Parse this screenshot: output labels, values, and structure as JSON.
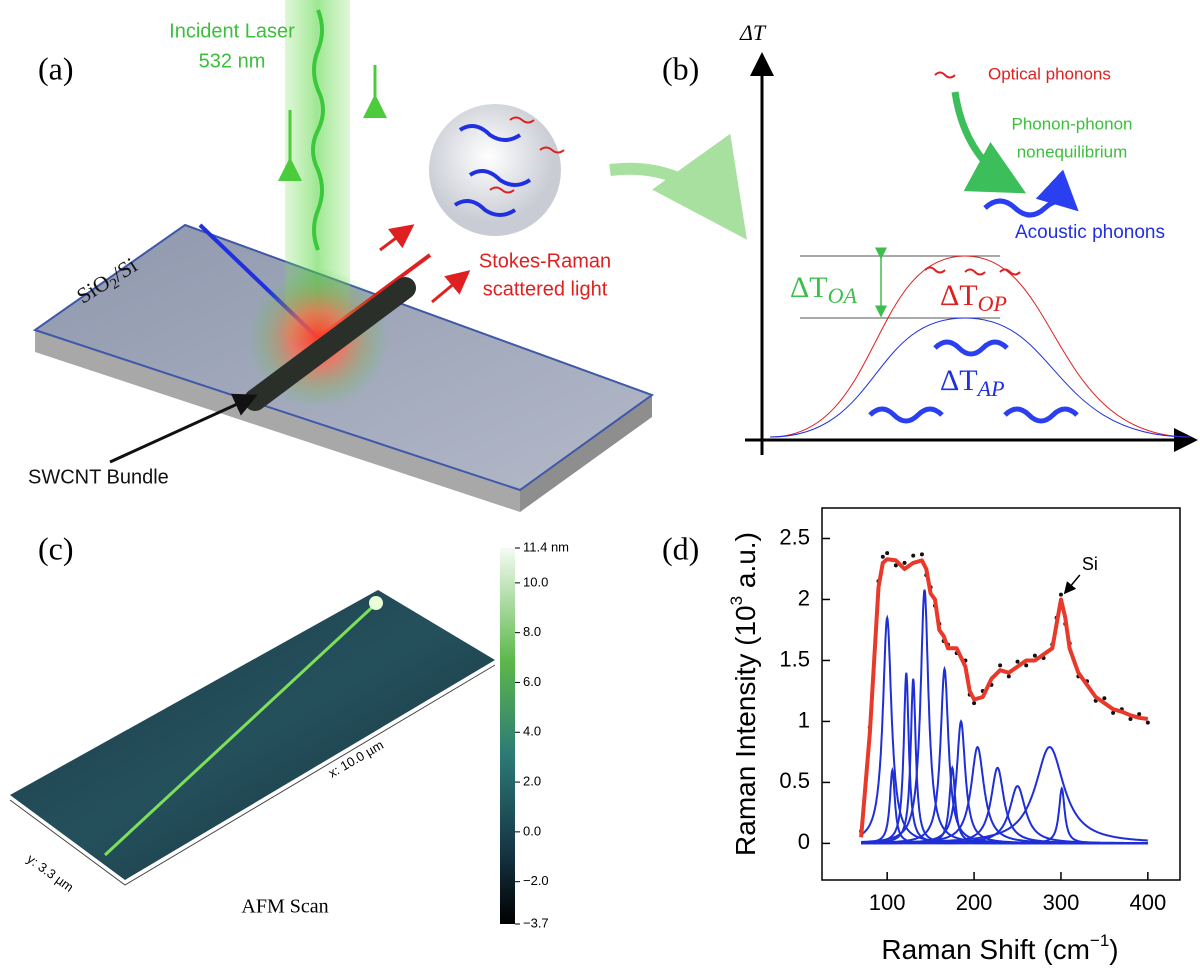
{
  "panels": {
    "a": {
      "label": "(a)",
      "laser": [
        "Incident Laser",
        "532 nm"
      ],
      "substrate": {
        "text": "SiO",
        "sub": "2",
        "tail": "/Si"
      },
      "scattered": [
        "Stokes-Raman",
        "scattered light"
      ],
      "bundle": "SWCNT Bundle"
    },
    "b": {
      "label": "(b)",
      "axis": "ΔT",
      "optical": "Optical phonons",
      "nonequilibrium": [
        "Phonon-phonon",
        "nonequilibrium"
      ],
      "acoustic": "Acoustic phonons",
      "oa": {
        "base": "ΔT",
        "sub": "OA"
      },
      "op": {
        "base": "ΔT",
        "sub": "OP"
      },
      "ap": {
        "base": "ΔT",
        "sub": "AP"
      }
    },
    "c": {
      "label": "(c)",
      "caption": "AFM Scan",
      "x_size": "x: 10.0 µm",
      "y_size": "y: 3.3 µm",
      "colorbar": {
        "lim": [
          -3.7,
          11.4
        ],
        "ticks": [
          {
            "value": 11.4,
            "label": "11.4 nm"
          },
          {
            "value": 10,
            "label": "10.0"
          },
          {
            "value": 8,
            "label": "8.0"
          },
          {
            "value": 6,
            "label": "6.0"
          },
          {
            "value": 4,
            "label": "4.0"
          },
          {
            "value": 2,
            "label": "2.0"
          },
          {
            "value": 0,
            "label": "0.0"
          },
          {
            "value": -2,
            "label": "−2.0"
          },
          {
            "value": -3.7,
            "label": "−3.7"
          }
        ]
      }
    }
  },
  "chart_data": {
    "type": "line",
    "label": "(d)",
    "xlabel": {
      "text": "Raman Shift (cm",
      "sup": "−1",
      "tail": ")"
    },
    "ylabel": {
      "text": "Raman Intensity (10",
      "sup": "3",
      "tail": " a.u.)"
    },
    "xlim": [
      25,
      437
    ],
    "ylim": [
      -0.3,
      2.75
    ],
    "xticks": [
      100,
      200,
      300,
      400
    ],
    "yticks": [
      0,
      0.5,
      1,
      1.5,
      2,
      2.5
    ],
    "x": [
      70,
      80,
      90,
      95,
      100,
      110,
      120,
      130,
      140,
      145,
      150,
      155,
      160,
      165,
      170,
      180,
      190,
      195,
      200,
      210,
      220,
      230,
      240,
      250,
      260,
      270,
      280,
      290,
      295,
      300,
      305,
      310,
      320,
      330,
      340,
      350,
      360,
      370,
      380,
      390,
      400
    ],
    "series": [
      {
        "color": "#111111",
        "marker": "dot",
        "values": [
          0.1,
          0.95,
          2.15,
          2.35,
          2.38,
          2.28,
          2.3,
          2.36,
          2.37,
          2.2,
          2.1,
          1.95,
          1.8,
          1.66,
          1.63,
          1.56,
          1.5,
          1.22,
          1.15,
          1.25,
          1.3,
          1.46,
          1.37,
          1.49,
          1.46,
          1.54,
          1.52,
          1.63,
          1.85,
          2.04,
          1.8,
          1.64,
          1.37,
          1.33,
          1.17,
          1.19,
          1.07,
          1.1,
          1.02,
          1.06,
          0.99
        ]
      },
      {
        "color": "#e8392a",
        "marker": "line",
        "values": [
          0.05,
          0.9,
          2.1,
          2.3,
          2.33,
          2.32,
          2.25,
          2.3,
          2.32,
          2.25,
          2.05,
          2.0,
          1.75,
          1.7,
          1.6,
          1.6,
          1.45,
          1.25,
          1.18,
          1.2,
          1.35,
          1.42,
          1.4,
          1.45,
          1.5,
          1.5,
          1.55,
          1.6,
          1.8,
          2.0,
          1.85,
          1.6,
          1.4,
          1.3,
          1.2,
          1.15,
          1.1,
          1.08,
          1.05,
          1.03,
          1.02
        ]
      }
    ],
    "components_color": "#1f2fd6",
    "components": [
      {
        "center": 100,
        "height": 1.85,
        "width": 12
      },
      {
        "center": 106,
        "height": 0.6,
        "width": 7
      },
      {
        "center": 122,
        "height": 1.4,
        "width": 7
      },
      {
        "center": 130,
        "height": 1.35,
        "width": 7
      },
      {
        "center": 143,
        "height": 2.08,
        "width": 11
      },
      {
        "center": 166,
        "height": 1.43,
        "width": 11
      },
      {
        "center": 175,
        "height": 0.62,
        "width": 8
      },
      {
        "center": 185,
        "height": 1.0,
        "width": 12
      },
      {
        "center": 204,
        "height": 0.79,
        "width": 18
      },
      {
        "center": 227,
        "height": 0.62,
        "width": 18
      },
      {
        "center": 250,
        "height": 0.47,
        "width": 22
      },
      {
        "center": 287,
        "height": 0.79,
        "width": 40
      },
      {
        "center": 301,
        "height": 0.45,
        "width": 8
      }
    ],
    "annotation": {
      "text": "Si",
      "x": 301,
      "y": 2.02
    }
  }
}
